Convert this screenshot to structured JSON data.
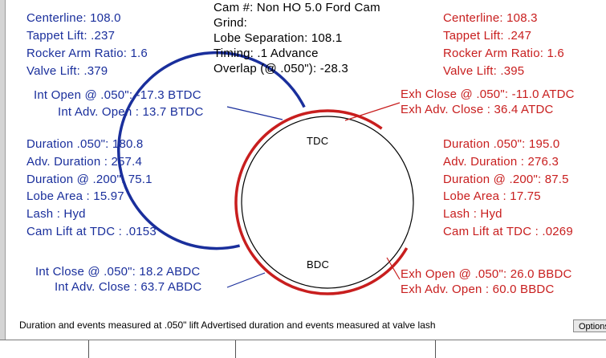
{
  "header": {
    "cam_line": "Cam #:  Non HO 5.0 Ford Cam",
    "grind_line": "Grind:",
    "lobe_sep_line": "Lobe Separation: 108.1",
    "timing_line": "Timing: .1  Advance",
    "overlap_line": "Overlap (@ .050\"): -28.3"
  },
  "intake": {
    "centerline": "Centerline: 108.0",
    "tappet_lift": "Tappet Lift: .237",
    "rocker_ratio": "Rocker Arm Ratio: 1.6",
    "valve_lift": "Valve Lift: .379",
    "open_050": "Int Open @ .050\": -17.3 BTDC",
    "adv_open": "Int Adv. Open : 13.7 BTDC",
    "duration_050": "Duration .050\": 180.8",
    "adv_duration": "Adv. Duration : 257.4",
    "duration_200": "Duration @ .200\": 75.1",
    "lobe_area": "Lobe Area : 15.97",
    "lash": "Lash : Hyd",
    "cam_lift_tdc": "Cam Lift at TDC : .0153",
    "close_050": "Int Close @ .050\": 18.2 ABDC",
    "adv_close": "Int Adv. Close : 63.7 ABDC"
  },
  "exhaust": {
    "centerline": "Centerline: 108.3",
    "tappet_lift": "Tappet Lift: .247",
    "rocker_ratio": "Rocker Arm Ratio: 1.6",
    "valve_lift": "Valve Lift: .395",
    "close_050": "Exh Close @ .050\": -11.0 ATDC",
    "adv_close": "Exh Adv. Close : 36.4 ATDC",
    "duration_050": "Duration .050\": 195.0",
    "adv_duration": "Adv. Duration : 276.3",
    "duration_200": "Duration @ .200\": 87.5",
    "lobe_area": "Lobe Area : 17.75",
    "lash": "Lash : Hyd",
    "cam_lift_tdc": "Cam Lift at TDC : .0269",
    "open_050": "Exh Open @ .050\": 26.0 BBDC",
    "adv_open": "Exh Adv. Open : 60.0 BBDC"
  },
  "wheel": {
    "tdc_label": "TDC",
    "bdc_label": "BDC",
    "intake_color": "#1a2f9c",
    "exhaust_color": "#c81e1e",
    "intake_open_deg_btdc": 13.7,
    "intake_close_deg_abdc": 63.7,
    "exhaust_open_deg_bbdc": 60.0,
    "exhaust_close_deg_atdc": 36.4
  },
  "footer": {
    "note": "Duration and events measured at .050\" lift   Advertised duration and events measured at valve lash",
    "options_label": "Options"
  }
}
